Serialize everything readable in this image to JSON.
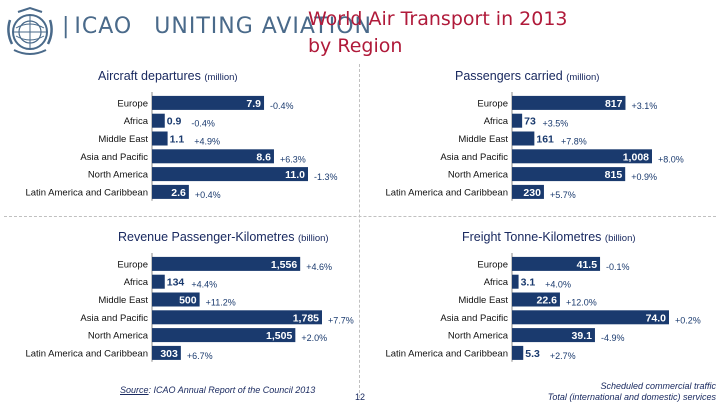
{
  "header": {
    "logo_text": "ICAO",
    "logo_tagline": "UNITING AVIATION",
    "title_line1": "World Air Transport in 2013",
    "title_line2": "by Region"
  },
  "colors": {
    "bar": "#1a3a6e",
    "value_text": "#ffffff",
    "pct_text": "#1a3a6e",
    "title": "#b01a3a",
    "panel_title": "#1a2a60"
  },
  "chart_data": [
    {
      "id": "aircraft_departures",
      "type": "bar",
      "orientation": "horizontal",
      "title": "Aircraft departures",
      "unit": "(million)",
      "categories": [
        "Europe",
        "Africa",
        "Middle East",
        "Asia and Pacific",
        "North America",
        "Latin America and Caribbean"
      ],
      "values": [
        7.9,
        0.9,
        1.1,
        8.6,
        11.0,
        2.6
      ],
      "value_labels": [
        "7.9",
        "0.9",
        "1.1",
        "8.6",
        "11.0",
        "2.6"
      ],
      "growth_labels": [
        "-0.4%",
        "-0.4%",
        "+4.9%",
        "+6.3%",
        "-1.3%",
        "+0.4%"
      ],
      "xlim": [
        0,
        11.0
      ]
    },
    {
      "id": "passengers_carried",
      "type": "bar",
      "orientation": "horizontal",
      "title": "Passengers carried",
      "unit": "(million)",
      "categories": [
        "Europe",
        "Africa",
        "Middle East",
        "Asia and Pacific",
        "North America",
        "Latin America and Caribbean"
      ],
      "values": [
        817,
        73,
        161,
        1008,
        815,
        230
      ],
      "value_labels": [
        "817",
        "73",
        "161",
        "1,008",
        "815",
        "230"
      ],
      "growth_labels": [
        "+3.1%",
        "+3.5%",
        "+7.8%",
        "+8.0%",
        "+0.9%",
        "+5.7%"
      ],
      "xlim": [
        0,
        1008
      ]
    },
    {
      "id": "rpk",
      "type": "bar",
      "orientation": "horizontal",
      "title": "Revenue Passenger-Kilometres",
      "unit": "(billion)",
      "categories": [
        "Europe",
        "Africa",
        "Middle East",
        "Asia and Pacific",
        "North America",
        "Latin America and Caribbean"
      ],
      "values": [
        1556,
        134,
        500,
        1785,
        1505,
        303
      ],
      "value_labels": [
        "1,556",
        "134",
        "500",
        "1,785",
        "1,505",
        "303"
      ],
      "growth_labels": [
        "+4.6%",
        "+4.4%",
        "+11.2%",
        "+7.7%",
        "+2.0%",
        "+6.7%"
      ],
      "xlim": [
        0,
        1785
      ]
    },
    {
      "id": "ftk",
      "type": "bar",
      "orientation": "horizontal",
      "title": "Freight Tonne-Kilometres",
      "unit": "(billion)",
      "categories": [
        "Europe",
        "Africa",
        "Middle East",
        "Asia and Pacific",
        "North America",
        "Latin America and Caribbean"
      ],
      "values": [
        41.5,
        3.1,
        22.6,
        74.0,
        39.1,
        5.3
      ],
      "value_labels": [
        "41.5",
        "3.1",
        "22.6",
        "74.0",
        "39.1",
        "5.3"
      ],
      "growth_labels": [
        "-0.1%",
        "+4.0%",
        "+12.0%",
        "+0.2%",
        "-4.9%",
        "+2.7%"
      ],
      "xlim": [
        0,
        74.0
      ]
    }
  ],
  "footer": {
    "source_prefix": "Source",
    "source_text": ": ICAO Annual Report of the Council 2013",
    "page_number": "12",
    "note_line1": "Scheduled commercial traffic",
    "note_line2": "Total (international and domestic) services"
  }
}
